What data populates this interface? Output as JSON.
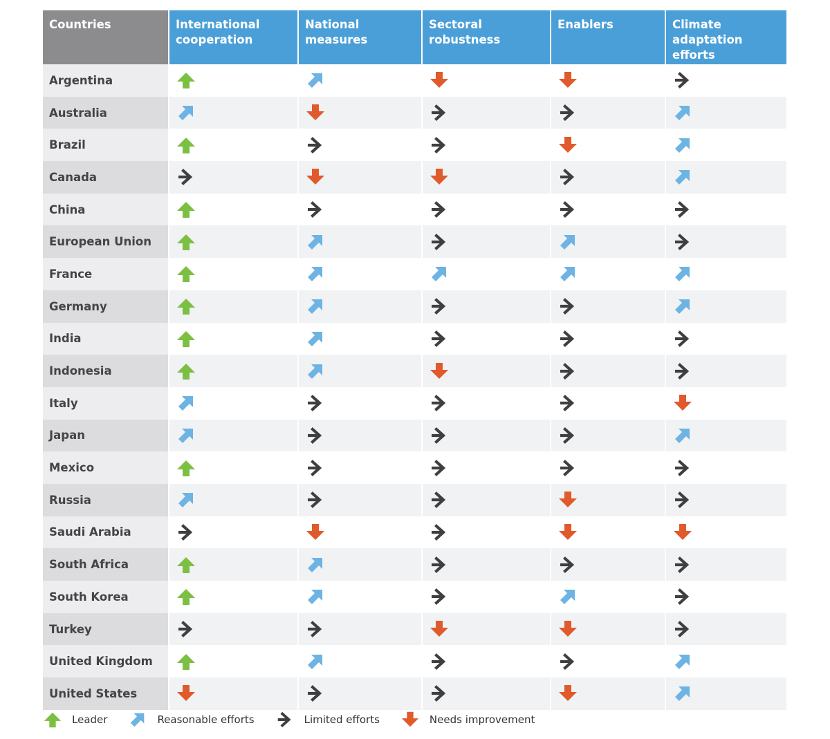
{
  "colors": {
    "leader": "#7cc043",
    "reasonable": "#6db3e3",
    "limited": "#3f3f3f",
    "needs_improvement": "#e05a2b",
    "header_bg": "#4a9fd8",
    "header_country_bg": "#8c8c8e"
  },
  "icons": {
    "leader": "arrow-up-icon",
    "reasonable": "arrow-up-right-icon",
    "limited": "arrow-right-icon",
    "needs_improvement": "arrow-down-icon"
  },
  "chart_data": {
    "type": "table",
    "columns": [
      "Countries",
      "International cooperation",
      "National measures",
      "Sectoral robustness",
      "Enablers",
      "Climate adaptation efforts"
    ],
    "rows": [
      {
        "country": "Argentina",
        "ratings": [
          "leader",
          "reasonable",
          "needs_improvement",
          "needs_improvement",
          "limited"
        ]
      },
      {
        "country": "Australia",
        "ratings": [
          "reasonable",
          "needs_improvement",
          "limited",
          "limited",
          "reasonable"
        ]
      },
      {
        "country": "Brazil",
        "ratings": [
          "leader",
          "limited",
          "limited",
          "needs_improvement",
          "reasonable"
        ]
      },
      {
        "country": "Canada",
        "ratings": [
          "limited",
          "needs_improvement",
          "needs_improvement",
          "limited",
          "reasonable"
        ]
      },
      {
        "country": "China",
        "ratings": [
          "leader",
          "limited",
          "limited",
          "limited",
          "limited"
        ]
      },
      {
        "country": "European Union",
        "ratings": [
          "leader",
          "reasonable",
          "limited",
          "reasonable",
          "limited"
        ]
      },
      {
        "country": "France",
        "ratings": [
          "leader",
          "reasonable",
          "reasonable",
          "reasonable",
          "reasonable"
        ]
      },
      {
        "country": "Germany",
        "ratings": [
          "leader",
          "reasonable",
          "limited",
          "limited",
          "reasonable"
        ]
      },
      {
        "country": "India",
        "ratings": [
          "leader",
          "reasonable",
          "limited",
          "limited",
          "limited"
        ]
      },
      {
        "country": "Indonesia",
        "ratings": [
          "leader",
          "reasonable",
          "needs_improvement",
          "limited",
          "limited"
        ]
      },
      {
        "country": "Italy",
        "ratings": [
          "reasonable",
          "limited",
          "limited",
          "limited",
          "needs_improvement"
        ]
      },
      {
        "country": "Japan",
        "ratings": [
          "reasonable",
          "limited",
          "limited",
          "limited",
          "reasonable"
        ]
      },
      {
        "country": "Mexico",
        "ratings": [
          "leader",
          "limited",
          "limited",
          "limited",
          "limited"
        ]
      },
      {
        "country": "Russia",
        "ratings": [
          "reasonable",
          "limited",
          "limited",
          "needs_improvement",
          "limited"
        ]
      },
      {
        "country": "Saudi Arabia",
        "ratings": [
          "limited",
          "needs_improvement",
          "limited",
          "needs_improvement",
          "needs_improvement"
        ]
      },
      {
        "country": "South Africa",
        "ratings": [
          "leader",
          "reasonable",
          "limited",
          "limited",
          "limited"
        ]
      },
      {
        "country": "South Korea",
        "ratings": [
          "leader",
          "reasonable",
          "limited",
          "reasonable",
          "limited"
        ]
      },
      {
        "country": "Turkey",
        "ratings": [
          "limited",
          "limited",
          "needs_improvement",
          "needs_improvement",
          "limited"
        ]
      },
      {
        "country": "United Kingdom",
        "ratings": [
          "leader",
          "reasonable",
          "limited",
          "limited",
          "reasonable"
        ]
      },
      {
        "country": "United States",
        "ratings": [
          "needs_improvement",
          "limited",
          "limited",
          "needs_improvement",
          "reasonable"
        ]
      }
    ],
    "legend": [
      {
        "key": "leader",
        "label": "Leader"
      },
      {
        "key": "reasonable",
        "label": "Reasonable efforts"
      },
      {
        "key": "limited",
        "label": "Limited efforts"
      },
      {
        "key": "needs_improvement",
        "label": "Needs improvement"
      }
    ]
  }
}
